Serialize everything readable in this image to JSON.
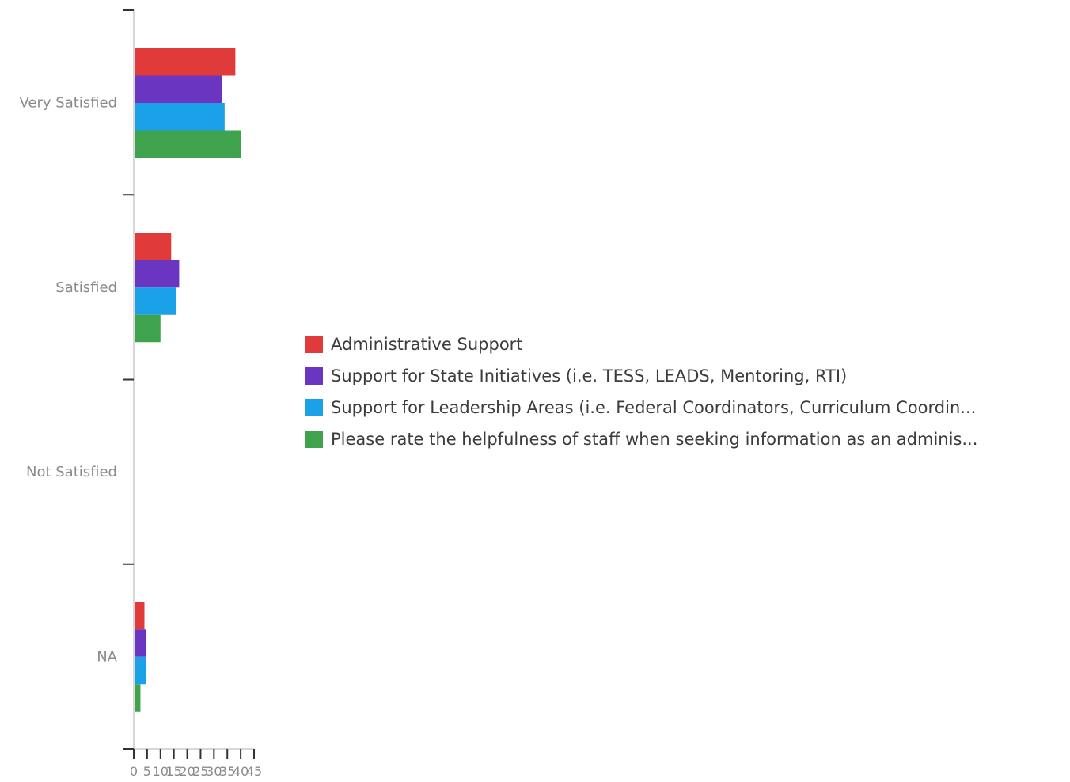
{
  "chart_data": {
    "type": "bar",
    "orientation": "horizontal",
    "categories": [
      "Very Satisfied",
      "Satisfied",
      "Not Satisfied",
      "NA"
    ],
    "series": [
      {
        "name": "Administrative Support",
        "color": "#e03a3a",
        "values": [
          38,
          14,
          0,
          4
        ]
      },
      {
        "name": "Support for State Initiatives (i.e. TESS, LEADS, Mentoring, RTI)",
        "color": "#6a35c0",
        "values": [
          33,
          17,
          0,
          4.5
        ]
      },
      {
        "name": "Support for Leadership Areas (i.e. Federal Coordinators, Curriculum Coordin...",
        "color": "#1aa1e8",
        "values": [
          34,
          16,
          0,
          4.5
        ]
      },
      {
        "name": "Please rate the helpfulness of staff when seeking information as an adminis...",
        "color": "#3fa34d",
        "values": [
          40,
          10,
          0,
          2.5
        ]
      }
    ],
    "xticks": [
      "0",
      "5",
      "10",
      "15",
      "20",
      "25",
      "30",
      "35",
      "40",
      "45"
    ],
    "xlim": [
      0,
      45
    ],
    "xlabel": "",
    "ylabel": "",
    "grid": false,
    "legend_position": "right"
  }
}
